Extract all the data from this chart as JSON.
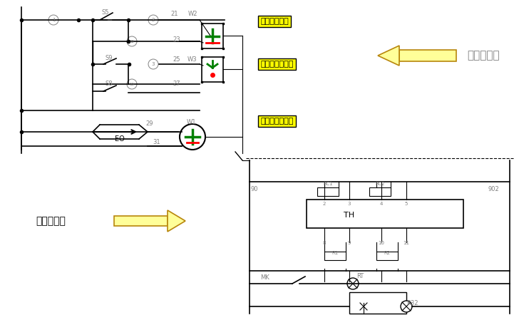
{
  "bg_color": "#ffffff",
  "title": "",
  "fig_width": 7.21,
  "fig_height": 4.42,
  "dpi": 100,
  "labels": {
    "he_fen": "合、分指示器",
    "che_wei": "手车位置指示器",
    "jie_di": "接地开关指示器",
    "mo_ni": "模拟指示器",
    "zhao_ming": "照明、加热"
  },
  "label_bg": "#ffff00",
  "label_border": "#000000",
  "arrow_color": "#ffff99",
  "circuit_color": "#808080",
  "line_color": "#000000"
}
